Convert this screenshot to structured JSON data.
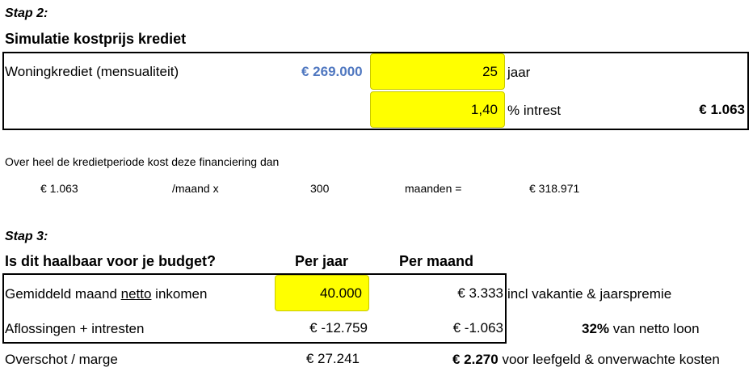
{
  "step2": {
    "heading": "Stap 2:",
    "title": "Simulatie kostprijs krediet",
    "loan_label": "Woningkrediet (mensualiteit)",
    "loan_amount": "€ 269.000",
    "years_value": "25",
    "years_unit": "jaar",
    "interest_value": "1,40",
    "interest_unit": "% intrest",
    "monthly_payment": "€ 1.063"
  },
  "summary": {
    "sentence": "Over heel de kredietperiode kost deze financiering dan",
    "monthly": "€ 1.063",
    "per_month_x": "/maand x",
    "months": "300",
    "months_label": "maanden =",
    "total": "€ 318.971"
  },
  "step3": {
    "heading": "Stap 3:",
    "question": "Is dit haalbaar voor je budget?",
    "col_year": "Per jaar",
    "col_month": "Per maand",
    "income_label_pre": "Gemiddeld maand ",
    "income_label_netto": "netto",
    "income_label_post": " inkomen",
    "income_year": "40.000",
    "income_month": "€ 3.333",
    "income_note": "incl vakantie & jaarspremie",
    "repay_label": "Aflossingen + intresten",
    "repay_year": "€ -12.759",
    "repay_month": "€ -1.063",
    "repay_pct": "32%",
    "repay_note": "van netto loon",
    "surplus_label": "Overschot / marge",
    "surplus_year": "€ 27.241",
    "surplus_month": "€ 2.270",
    "surplus_note": "voor leefgeld & onverwachte kosten"
  }
}
